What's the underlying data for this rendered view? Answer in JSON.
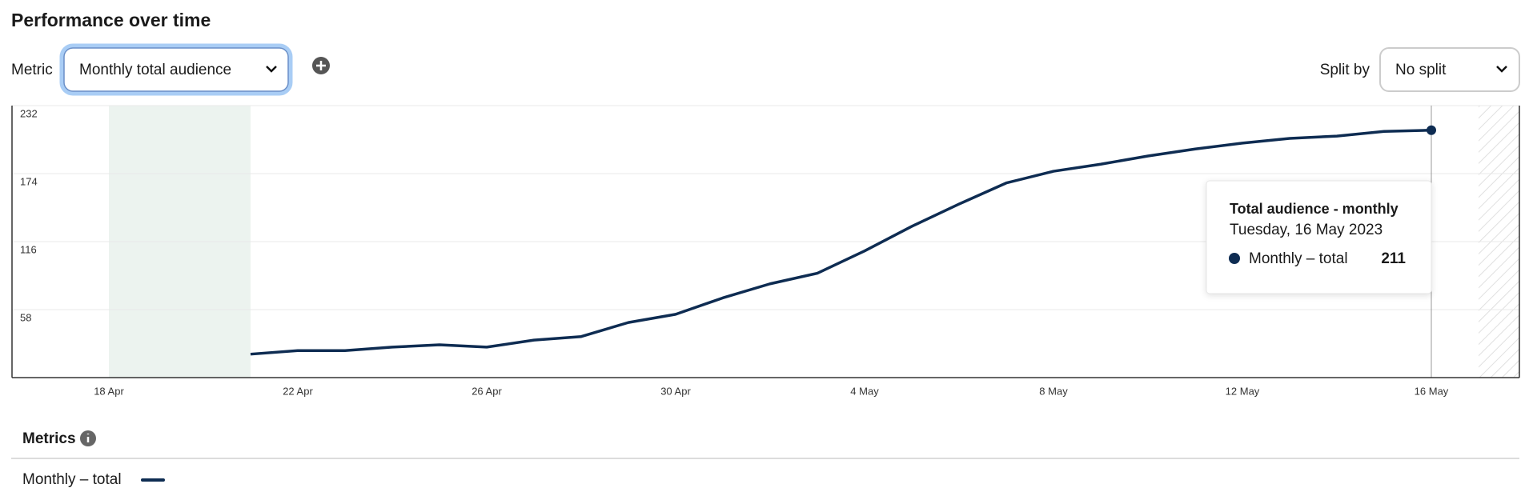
{
  "title": "Performance over time",
  "metric_label": "Metric",
  "metric_value": "Monthly total audience",
  "split_label": "Split by",
  "split_value": "No split",
  "metrics_heading": "Metrics",
  "tooltip": {
    "title": "Total audience - monthly",
    "date": "Tuesday, 16 May 2023"
  },
  "chart_data": {
    "type": "line",
    "categories": [
      "18 Apr",
      null,
      null,
      null,
      "22 Apr",
      null,
      null,
      null,
      "26 Apr",
      null,
      null,
      null,
      "30 Apr",
      null,
      null,
      null,
      "4 May",
      null,
      null,
      null,
      "8 May",
      null,
      null,
      null,
      "12 May",
      null,
      null,
      null,
      "16 May"
    ],
    "series": [
      {
        "name": "Monthly – total",
        "color": "#0e2c52",
        "values": [
          null,
          null,
          null,
          20,
          23,
          23,
          26,
          28,
          26,
          32,
          35,
          47,
          54,
          68,
          80,
          89,
          108,
          129,
          148,
          166,
          176,
          182,
          189,
          195,
          200,
          204,
          206,
          210,
          211
        ]
      }
    ],
    "ylim": [
      0,
      232
    ],
    "yticks": [
      58,
      116,
      174,
      232
    ],
    "grid": true
  }
}
